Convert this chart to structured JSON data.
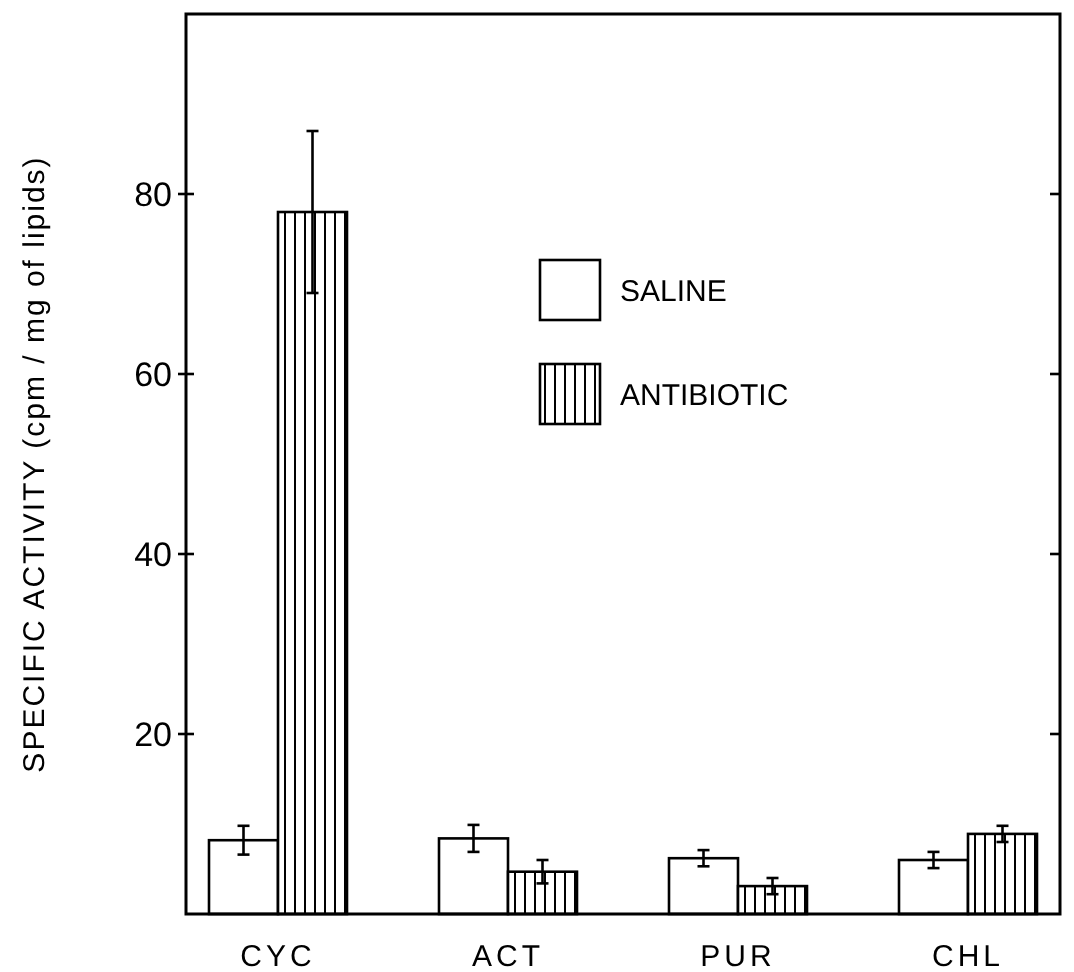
{
  "chart_data": {
    "type": "bar",
    "ylabel": "SPECIFIC ACTIVITY (cpm / mg of lipids)",
    "categories": [
      "CYC",
      "ACT",
      "PUR",
      "CHL"
    ],
    "ylim": [
      0,
      100
    ],
    "yticks": [
      20,
      40,
      60,
      80
    ],
    "legend": "top right",
    "grid": false,
    "series": [
      {
        "name": "SALINE",
        "color": "#ffffff",
        "values": [
          8.2,
          8.4,
          6.2,
          6.0
        ],
        "errors": [
          1.6,
          1.5,
          0.9,
          0.9
        ]
      },
      {
        "name": "ANTIBIOTIC",
        "color": "#000000",
        "values": [
          78,
          4.7,
          3.1,
          8.9
        ],
        "errors": [
          9,
          1.3,
          0.9,
          0.9
        ]
      }
    ]
  }
}
